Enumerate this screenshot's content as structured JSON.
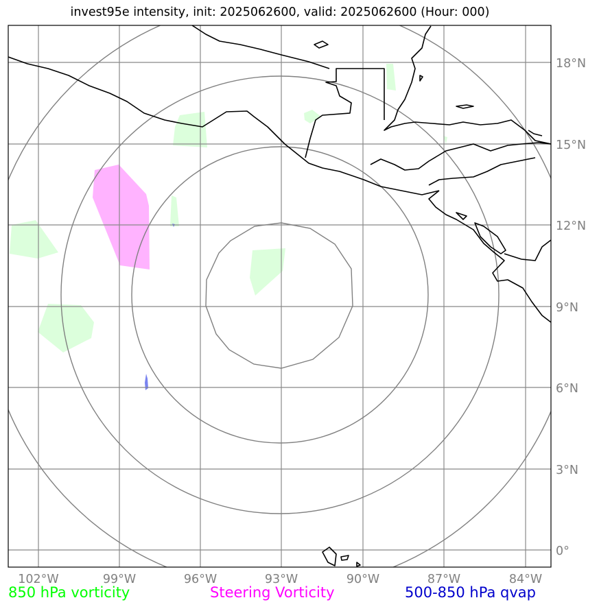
{
  "title": "invest95e intensity, init: 2025062600, valid: 2025062600 (Hour: 000)",
  "map": {
    "lon_labels": [
      "102°W",
      "99°W",
      "96°W",
      "93°W",
      "90°W",
      "87°W",
      "84°W"
    ],
    "lat_labels": [
      "18°N",
      "15°N",
      "12°N",
      "9°N",
      "6°N",
      "3°N",
      "0°"
    ],
    "gridline_color": "#888888",
    "range_ring_color": "#808080",
    "coastline_color": "#000000"
  },
  "fields": {
    "vorticity_850_color": "#dcffdc",
    "steering_vorticity_color": "#ffb3ff",
    "qvap_color": "#7a84f0"
  },
  "legend": {
    "vorticity_850": {
      "label": "850 hPa vorticity",
      "color": "#00ff00"
    },
    "steering_vorticity": {
      "label": "Steering Vorticity",
      "color": "#ff00ff"
    },
    "qvap": {
      "label": "500-850 hPa qvap",
      "color": "#0000cc"
    }
  }
}
